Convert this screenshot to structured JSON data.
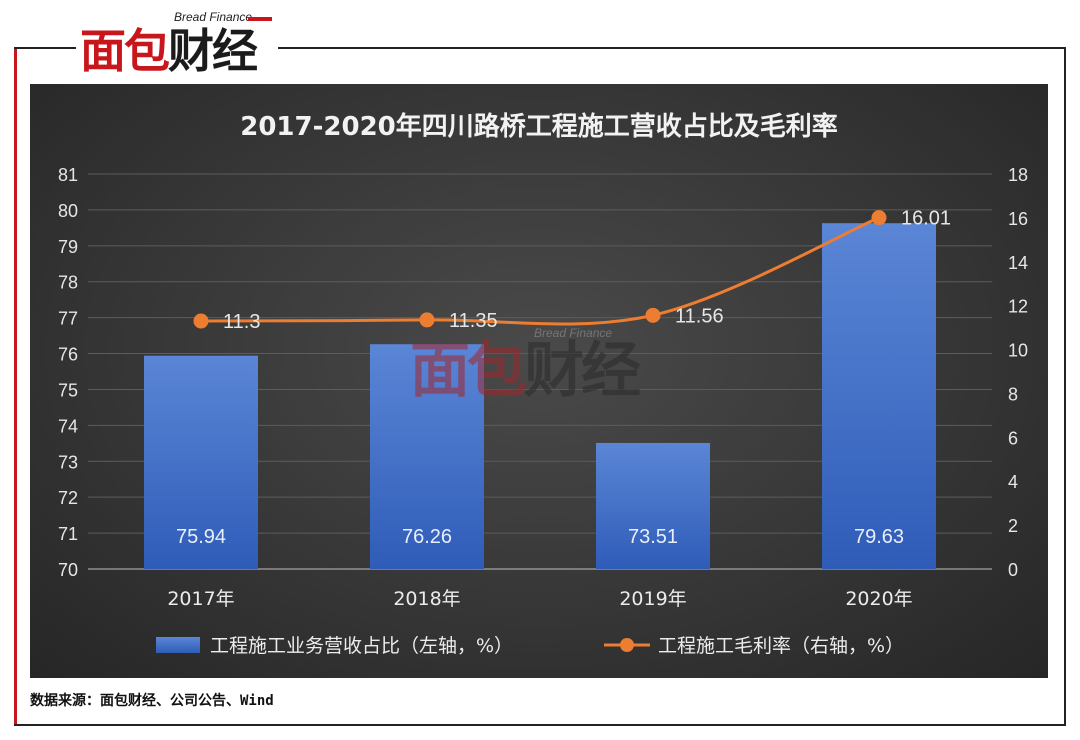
{
  "brand": {
    "en": "Bread Finance",
    "cn_red": "面包",
    "cn_black": "财经"
  },
  "source_text": "数据来源：面包财经、公司公告、Wind",
  "colors": {
    "bar": "#4472c4",
    "line": "#ed7d31",
    "accent_red": "#c8161d",
    "panel_bg": "#3a3a3a",
    "text_light": "#f2f2f2"
  },
  "chart_data": {
    "type": "bar",
    "title": "2017-2020年四川路桥工程施工营收占比及毛利率",
    "categories": [
      "2017年",
      "2018年",
      "2019年",
      "2020年"
    ],
    "series": [
      {
        "name": "工程施工业务营收占比（左轴，%）",
        "type": "bar",
        "axis": "left",
        "values": [
          75.94,
          76.26,
          73.51,
          79.63
        ],
        "labels": [
          "75.94",
          "76.26",
          "73.51",
          "79.63"
        ]
      },
      {
        "name": "工程施工毛利率（右轴，%）",
        "type": "line",
        "axis": "right",
        "values": [
          11.3,
          11.35,
          11.56,
          16.01
        ],
        "labels": [
          "11.3",
          "11.35",
          "11.56",
          "16.01"
        ]
      }
    ],
    "y_left": {
      "min": 70,
      "max": 81,
      "ticks": [
        "70",
        "71",
        "72",
        "73",
        "74",
        "75",
        "76",
        "77",
        "78",
        "79",
        "80",
        "81"
      ]
    },
    "y_right": {
      "min": 0,
      "max": 18,
      "ticks": [
        "0",
        "2",
        "4",
        "6",
        "8",
        "10",
        "12",
        "14",
        "16",
        "18"
      ]
    },
    "grid": true,
    "legend_position": "bottom"
  }
}
